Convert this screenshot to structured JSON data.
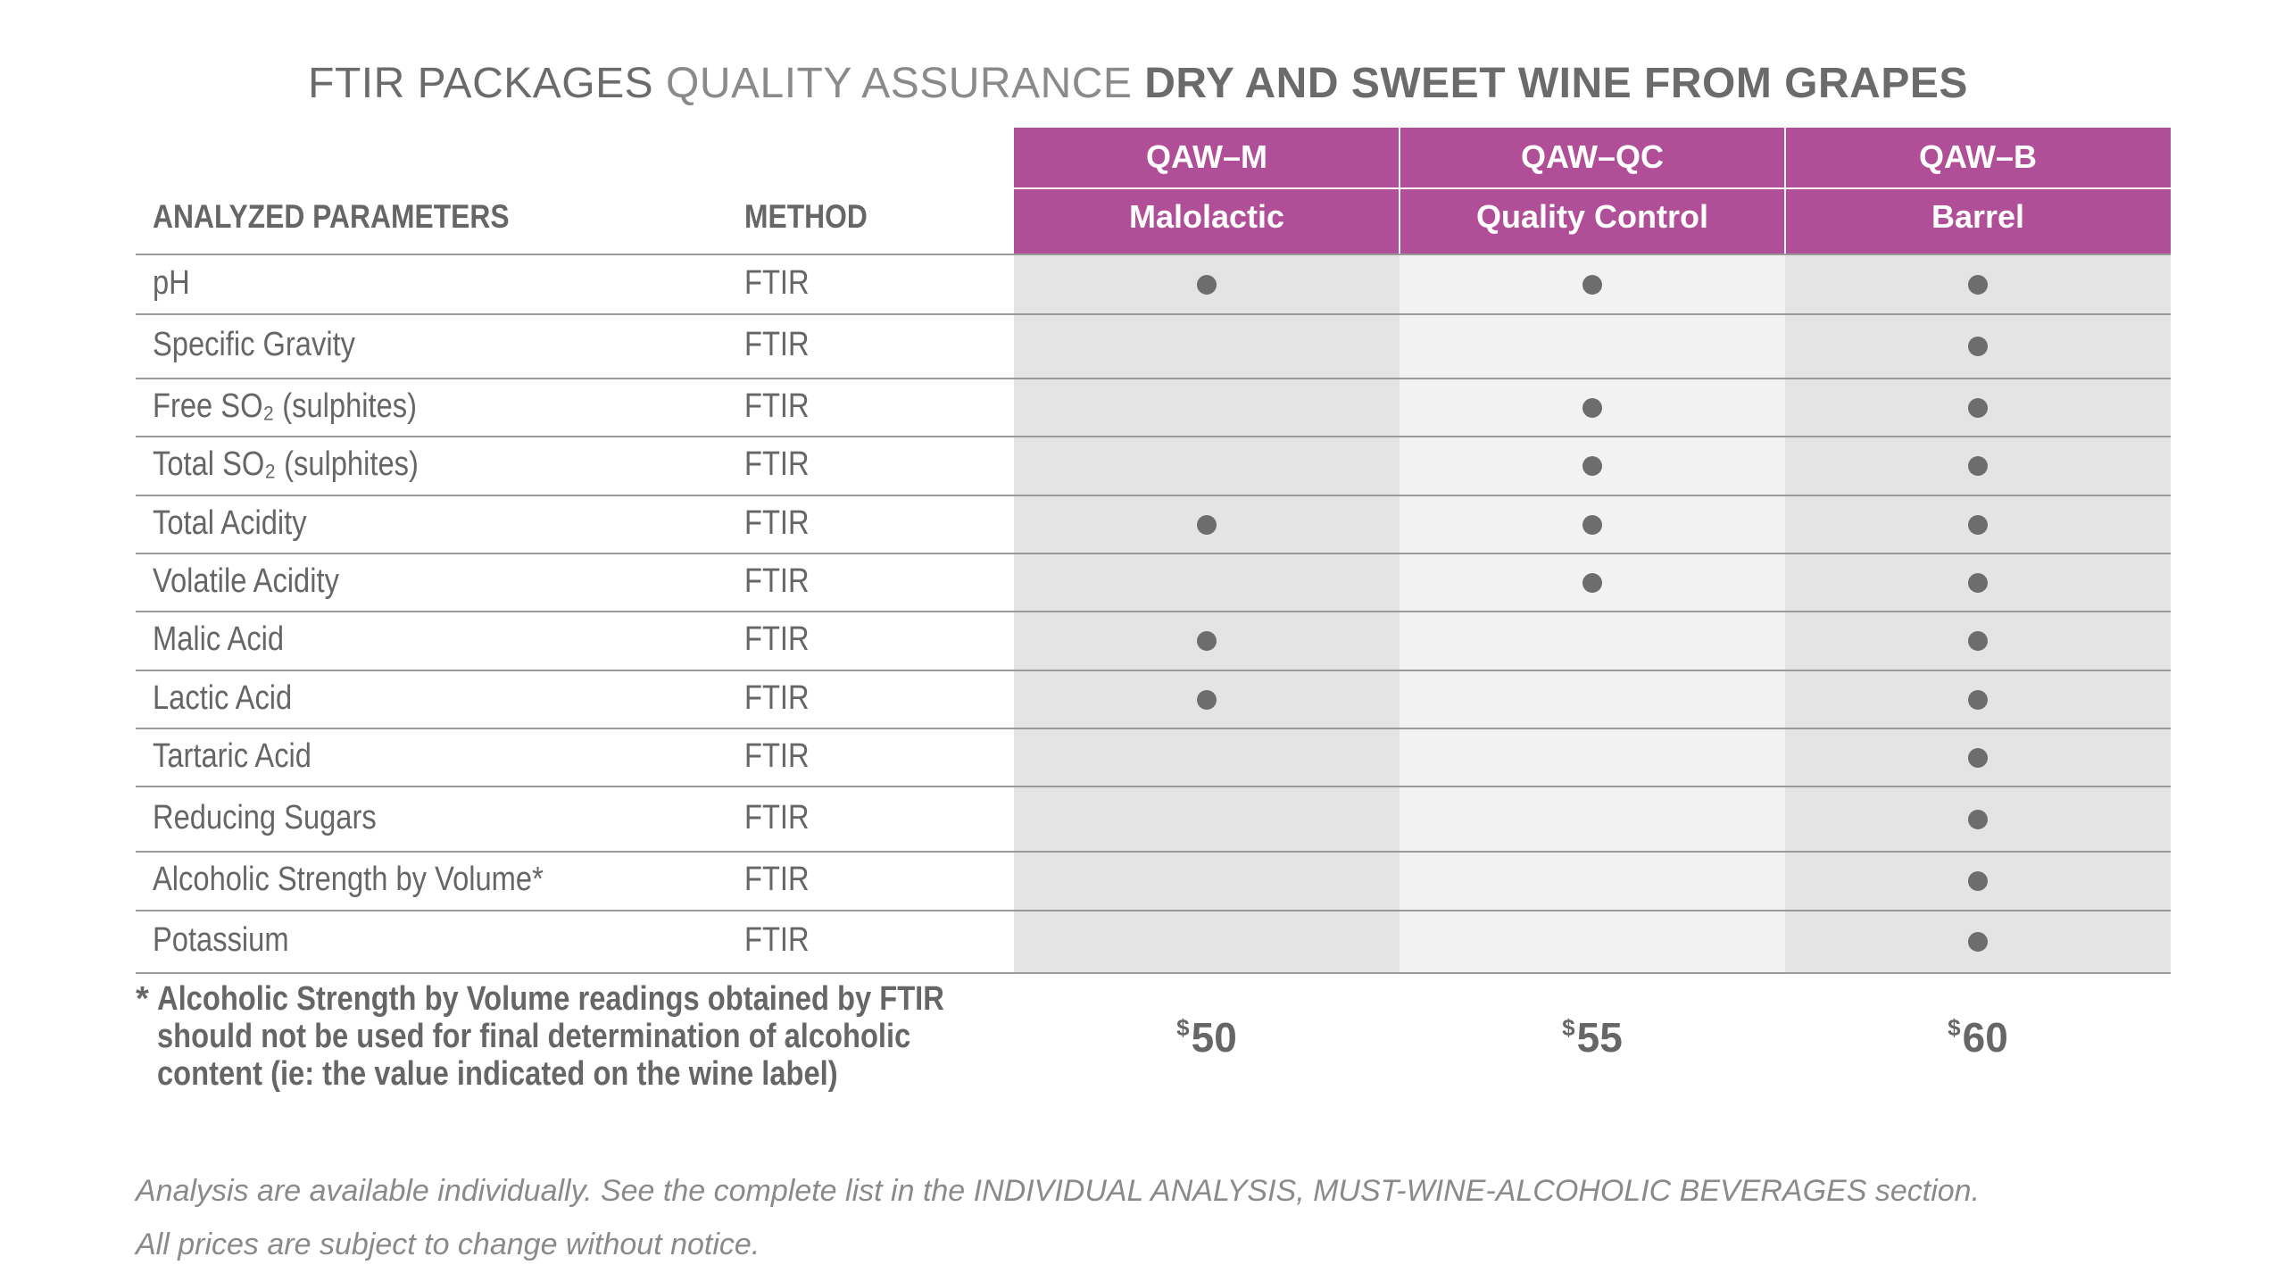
{
  "title": {
    "part1": "FTIR PACKAGES",
    "part2": "QUALITY ASSURANCE",
    "part3": "DRY AND SWEET WINE FROM GRAPES"
  },
  "headers": {
    "param": "ANALYZED PARAMETERS",
    "method": "METHOD"
  },
  "packages": [
    {
      "code": "QAW–M",
      "name": "Malolactic",
      "price_symbol": "$",
      "price": "50"
    },
    {
      "code": "QAW–QC",
      "name": "Quality Control",
      "price_symbol": "$",
      "price": "55"
    },
    {
      "code": "QAW–B",
      "name": "Barrel",
      "price_symbol": "$",
      "price": "60"
    }
  ],
  "rows": [
    {
      "param": "pH",
      "method": "FTIR",
      "included": [
        true,
        true,
        true
      ]
    },
    {
      "param": "Specific Gravity",
      "method": "FTIR",
      "included": [
        false,
        false,
        true
      ]
    },
    {
      "param": "Free SO₂ (sulphites)",
      "method": "FTIR",
      "included": [
        false,
        true,
        true
      ]
    },
    {
      "param": "Total SO₂ (sulphites)",
      "method": "FTIR",
      "included": [
        false,
        true,
        true
      ]
    },
    {
      "param": "Total Acidity",
      "method": "FTIR",
      "included": [
        true,
        true,
        true
      ]
    },
    {
      "param": "Volatile Acidity",
      "method": "FTIR",
      "included": [
        false,
        true,
        true
      ]
    },
    {
      "param": "Malic Acid",
      "method": "FTIR",
      "included": [
        true,
        false,
        true
      ]
    },
    {
      "param": "Lactic Acid",
      "method": "FTIR",
      "included": [
        true,
        false,
        true
      ]
    },
    {
      "param": "Tartaric Acid",
      "method": "FTIR",
      "included": [
        false,
        false,
        true
      ]
    },
    {
      "param": "Reducing Sugars",
      "method": "FTIR",
      "included": [
        false,
        false,
        true
      ]
    },
    {
      "param": "Alcoholic Strength by Volume*",
      "method": "FTIR",
      "included": [
        false,
        false,
        true
      ]
    },
    {
      "param": "Potassium",
      "method": "FTIR",
      "included": [
        false,
        false,
        true
      ]
    }
  ],
  "note": {
    "star": "*",
    "text": "Alcoholic Strength by Volume readings obtained by FTIR should not be used for final determination of alcoholic content (ie: the value indicated on the wine label)"
  },
  "footer": {
    "line1": "Analysis are available individually. See the complete list in the INDIVIDUAL ANALYSIS, MUST-WINE-ALCOHOLIC BEVERAGES section.",
    "line2": "All prices are subject to change without notice."
  },
  "colors": {
    "header_bg": "#b04f97",
    "shade_dark": "#e3e4e3",
    "shade_light": "#f2f2f2",
    "dot": "#6d6d6d",
    "text": "#666666"
  }
}
